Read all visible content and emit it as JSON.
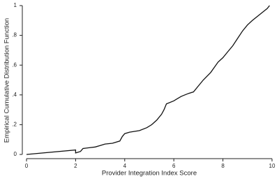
{
  "chart_data": {
    "type": "line",
    "xlabel": "Provider Integration Index Score",
    "ylabel": "Empirical Cumulative Distribution Function",
    "x": [
      0,
      2.0,
      2.0,
      2.2,
      2.3,
      2.8,
      3.0,
      3.2,
      3.5,
      3.8,
      3.9,
      4.0,
      4.2,
      4.6,
      4.9,
      5.1,
      5.3,
      5.5,
      5.6,
      5.7,
      6.0,
      6.3,
      6.6,
      6.8,
      7.0,
      7.2,
      7.5,
      7.8,
      8.0,
      8.2,
      8.4,
      8.6,
      8.8,
      9.0,
      9.2,
      9.5,
      9.8,
      9.9
    ],
    "values": [
      0,
      0.03,
      0.01,
      0.02,
      0.04,
      0.05,
      0.06,
      0.07,
      0.075,
      0.09,
      0.12,
      0.14,
      0.15,
      0.16,
      0.18,
      0.2,
      0.23,
      0.27,
      0.3,
      0.34,
      0.36,
      0.39,
      0.41,
      0.42,
      0.46,
      0.5,
      0.55,
      0.62,
      0.65,
      0.69,
      0.73,
      0.78,
      0.83,
      0.87,
      0.9,
      0.94,
      0.98,
      1.0
    ],
    "color": "#111111",
    "xlim": [
      0,
      10
    ],
    "xticks": [
      0,
      2,
      4,
      6,
      8,
      10
    ],
    "ylim": [
      0,
      1
    ],
    "yticks": [
      0,
      {
        "value": 0.2,
        "label": ".2"
      },
      {
        "value": 0.4,
        "label": ".4"
      },
      {
        "value": 0.6,
        "label": ".6"
      },
      {
        "value": 0.8,
        "label": ".8"
      },
      1
    ],
    "grid": false
  }
}
